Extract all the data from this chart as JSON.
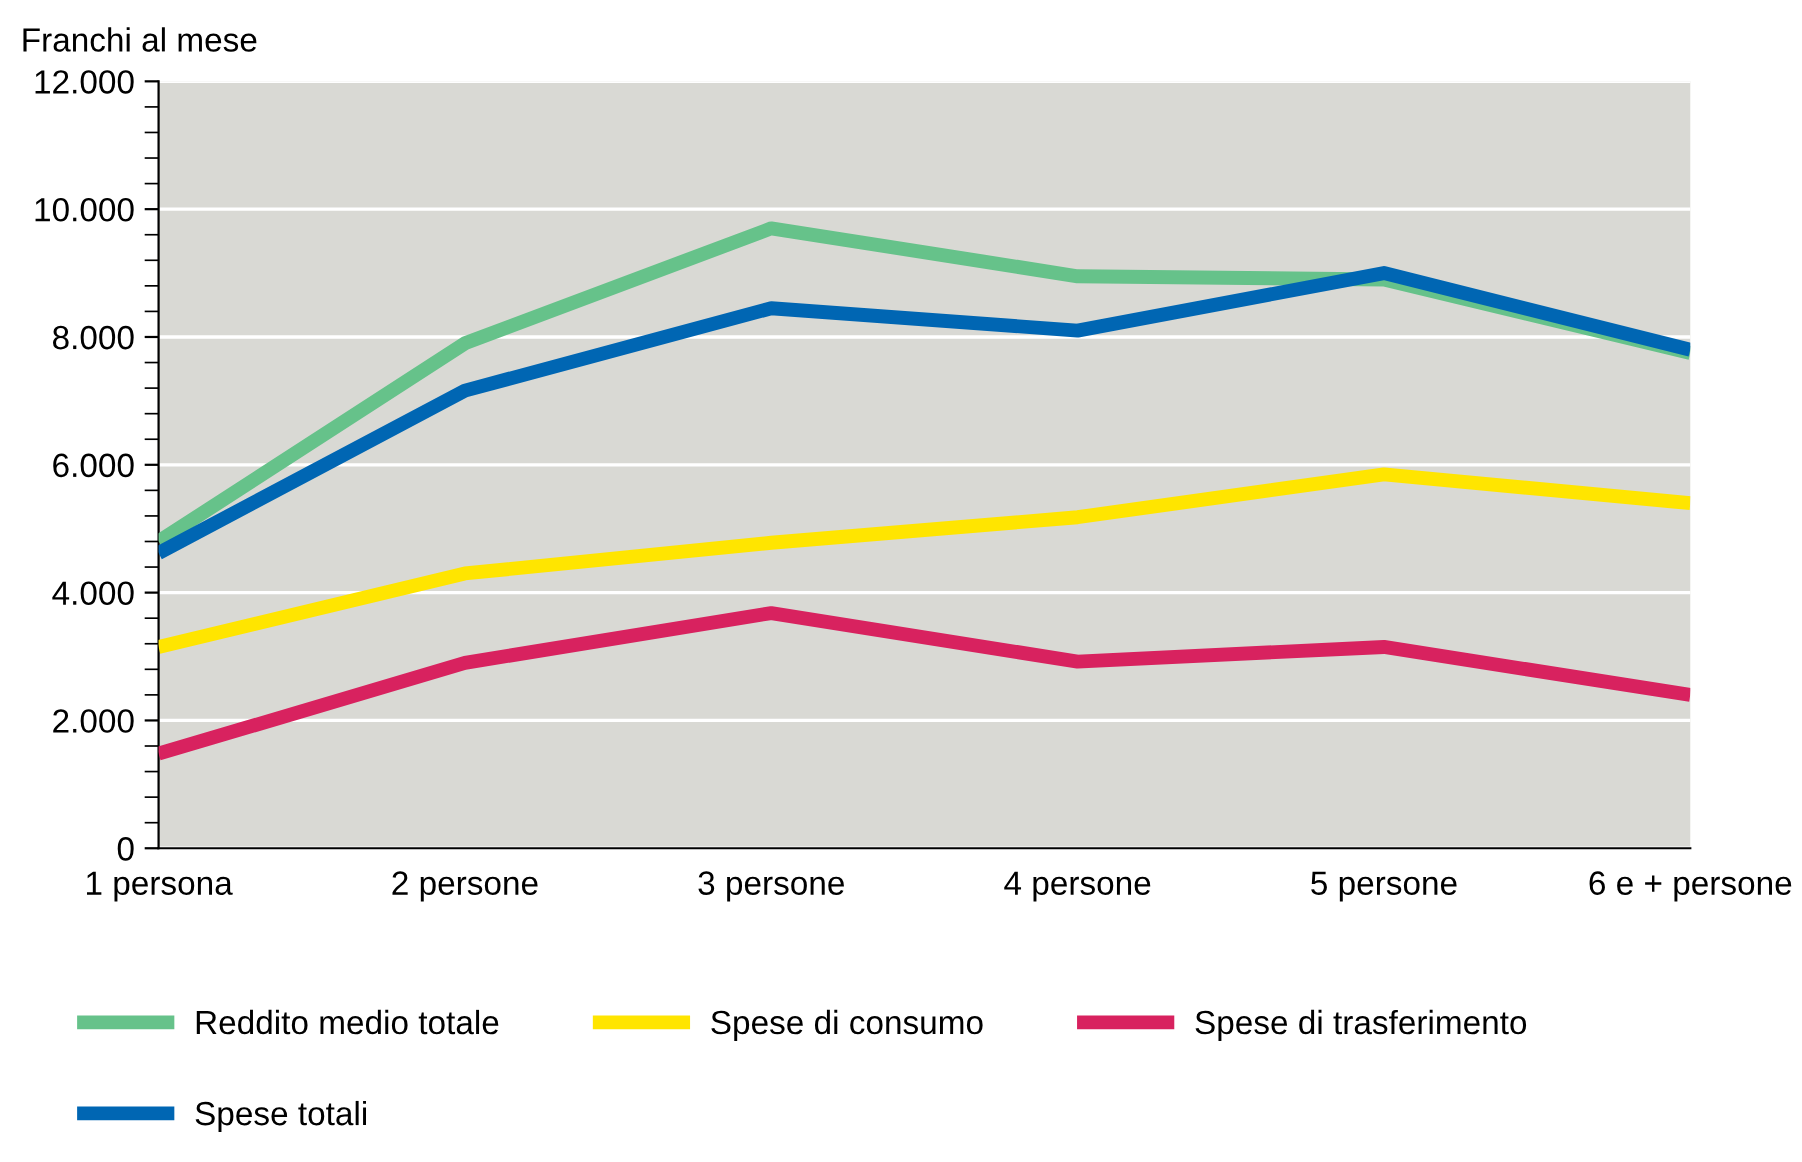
{
  "chart_data": {
    "type": "line",
    "ylabel": "Franchi al mese",
    "categories": [
      "1 persona",
      "2 persone",
      "3 persone",
      "4 persone",
      "5 persone",
      "6 e + persone"
    ],
    "series": [
      {
        "name": "Reddito medio totale",
        "color": "#66c28a",
        "values": [
          4800,
          7900,
          9700,
          8950,
          8900,
          7750
        ]
      },
      {
        "name": "Spese di consumo",
        "color": "#ffe500",
        "values": [
          3150,
          4300,
          4780,
          5180,
          5850,
          5400
        ]
      },
      {
        "name": "Spese di trasferimento",
        "color": "#d8225f",
        "values": [
          1480,
          2900,
          3680,
          2920,
          3150,
          2400
        ]
      },
      {
        "name": "Spese totali",
        "color": "#0066b3",
        "values": [
          4620,
          7160,
          8450,
          8100,
          9000,
          7800
        ]
      }
    ],
    "ylim": [
      0,
      12000
    ],
    "yticks": [
      0,
      {
        "value": 400,
        "label": null
      },
      {
        "value": 800,
        "label": null
      },
      {
        "value": 1200,
        "label": null
      },
      {
        "value": 1600,
        "label": null
      },
      {
        "value": 2000,
        "label": "2.000"
      },
      {
        "value": 2400,
        "label": null
      },
      {
        "value": 2800,
        "label": null
      },
      {
        "value": 3200,
        "label": null
      },
      {
        "value": 3600,
        "label": null
      },
      {
        "value": 4000,
        "label": "4.000"
      },
      {
        "value": 4400,
        "label": null
      },
      {
        "value": 4800,
        "label": null
      },
      {
        "value": 5200,
        "label": null
      },
      {
        "value": 5600,
        "label": null
      },
      {
        "value": 6000,
        "label": "6.000"
      },
      {
        "value": 6400,
        "label": null
      },
      {
        "value": 6800,
        "label": null
      },
      {
        "value": 7200,
        "label": null
      },
      {
        "value": 7600,
        "label": null
      },
      {
        "value": 8000,
        "label": "8.000"
      },
      {
        "value": 8400,
        "label": null
      },
      {
        "value": 8800,
        "label": null
      },
      {
        "value": 9200,
        "label": null
      },
      {
        "value": 9600,
        "label": null
      },
      {
        "value": 10000,
        "label": "10.000"
      },
      {
        "value": 10400,
        "label": null
      },
      {
        "value": 10800,
        "label": null
      },
      {
        "value": 11200,
        "label": null
      },
      {
        "value": 11600,
        "label": null
      },
      {
        "value": 12000,
        "label": "12.000"
      }
    ],
    "grid": "y",
    "legend": "bottom",
    "marker": "none",
    "line_style": "solid"
  }
}
